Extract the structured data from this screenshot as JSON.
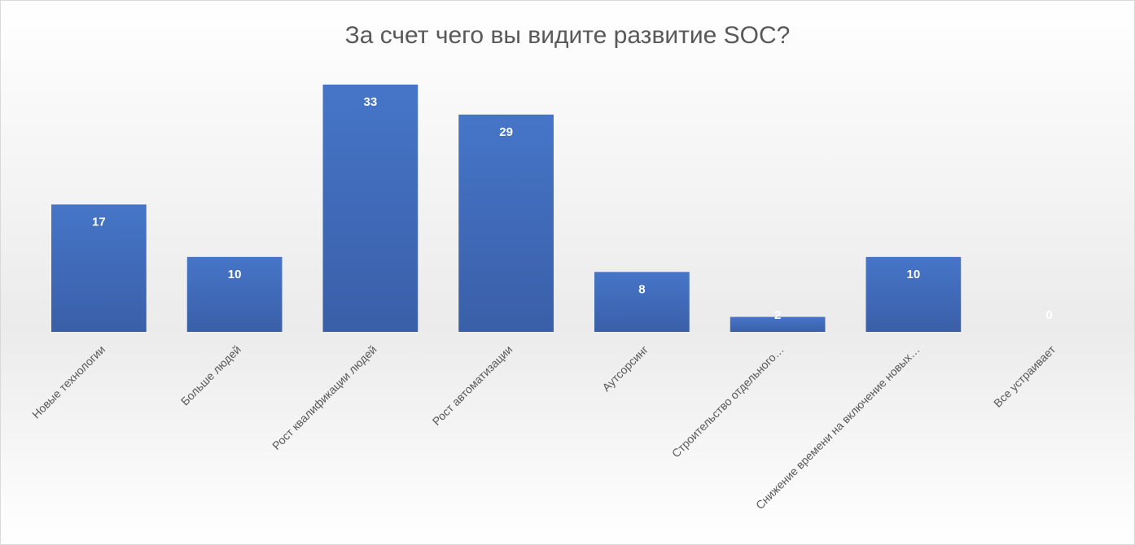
{
  "chart_data": {
    "type": "bar",
    "title": "За счет чего вы видите развитие SOC?",
    "categories": [
      "Новые технологии",
      "Больше людей",
      "Рост квалификации людей",
      "Рост автоматизации",
      "Аутсорсинг",
      "Строительство отдельного…",
      "Снижение времени на включение новых…",
      "Все устраивает"
    ],
    "values": [
      17,
      10,
      33,
      29,
      8,
      2,
      10,
      0
    ],
    "color": "#4472c4"
  }
}
